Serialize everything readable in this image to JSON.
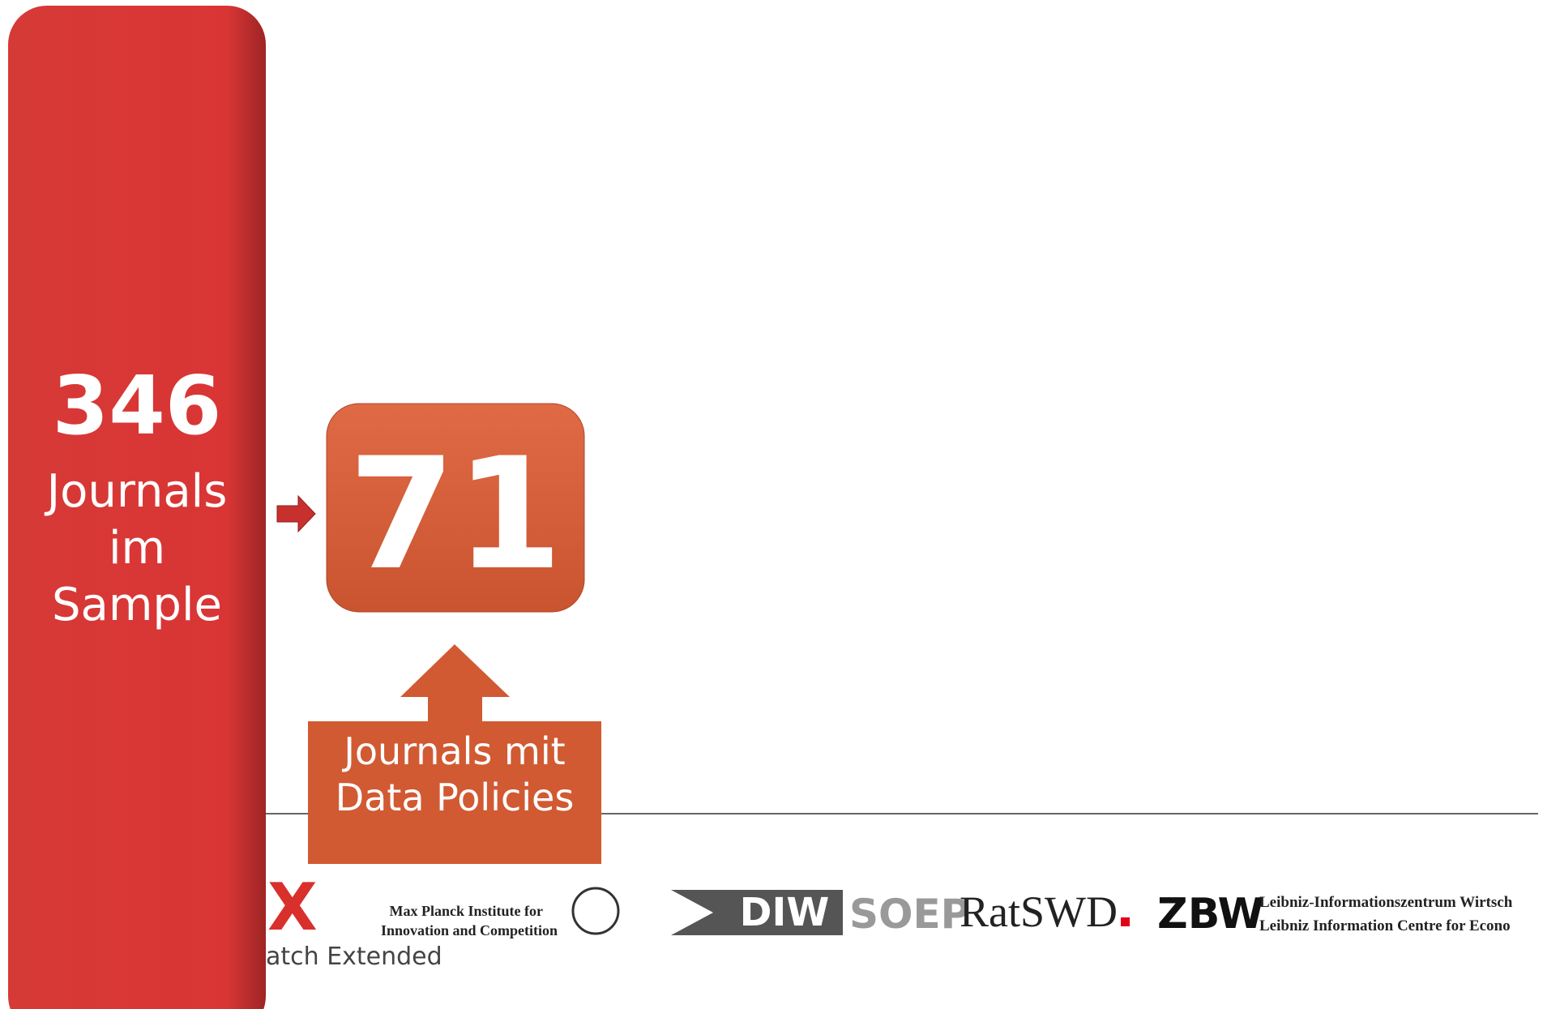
{
  "sample": {
    "count": "346",
    "lines": [
      "Journals",
      "im",
      "Sample"
    ]
  },
  "policies": {
    "count": "71",
    "lines": [
      "Journals mit",
      "Data Policies"
    ]
  },
  "logos": {
    "x_mark": "X",
    "x_text": "atch Extended",
    "mpi": [
      "Max Planck Institute for",
      "Innovation and Competition"
    ],
    "diw": "DIW",
    "soep": "SOEP",
    "ratswd": "RatSWD",
    "zbw": "ZBW",
    "leibniz": [
      "Leibniz-Informationszentrum Wirtsch",
      "Leibniz Information Centre for Econo"
    ]
  }
}
